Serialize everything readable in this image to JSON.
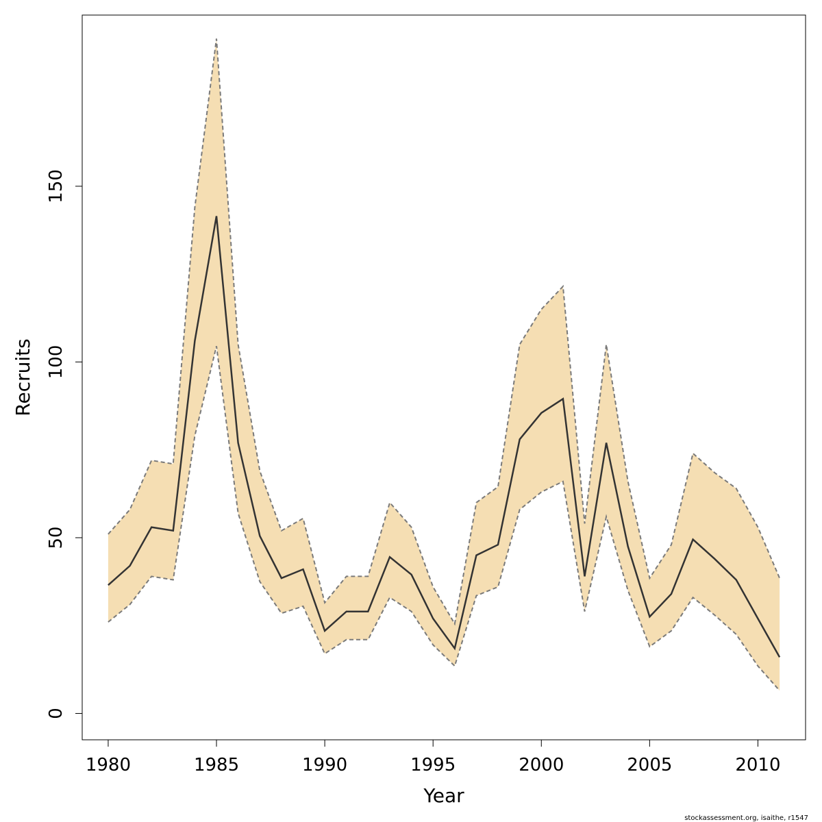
{
  "chart_data": {
    "type": "area",
    "title": "",
    "xlabel": "Year",
    "ylabel": "Recruits",
    "x": [
      1980,
      1981,
      1982,
      1983,
      1984,
      1985,
      1986,
      1987,
      1988,
      1989,
      1990,
      1991,
      1992,
      1993,
      1994,
      1995,
      1996,
      1997,
      1998,
      1999,
      2000,
      2001,
      2002,
      2003,
      2004,
      2005,
      2006,
      2007,
      2008,
      2009,
      2010,
      2011
    ],
    "series": [
      {
        "role": "estimate",
        "values": [
          36.5,
          42,
          53,
          52,
          106,
          141.5,
          77,
          50.5,
          38.5,
          41,
          23.5,
          29,
          29,
          44.5,
          39.5,
          27,
          18.5,
          45,
          48,
          78,
          85.5,
          89.5,
          39,
          77,
          47.5,
          27.5,
          34,
          49.5,
          44,
          38,
          27,
          16
        ]
      },
      {
        "role": "upper",
        "values": [
          51,
          58,
          72,
          71,
          144,
          192,
          105,
          69,
          52,
          55.5,
          31.5,
          39,
          39,
          60,
          53,
          36,
          25.5,
          60,
          64.5,
          105,
          115,
          121.5,
          54,
          105,
          66,
          38.5,
          48,
          74,
          68.5,
          64,
          53,
          38.5
        ]
      },
      {
        "role": "lower",
        "values": [
          26,
          31,
          39,
          38,
          79,
          104.5,
          57,
          37.5,
          28.5,
          30.5,
          17,
          21,
          21,
          33,
          29,
          19.5,
          13.5,
          33.5,
          36,
          58,
          63,
          66,
          29,
          56,
          35,
          19,
          23.5,
          33,
          28,
          22.5,
          13.5,
          6.5
        ]
      }
    ],
    "xlim": [
      1978.8,
      2012.2
    ],
    "ylim": [
      -7.5,
      198.7
    ],
    "x_ticks": [
      1980,
      1985,
      1990,
      1995,
      2000,
      2005,
      2010
    ],
    "y_ticks": [
      0,
      50,
      100,
      150
    ],
    "grid": false,
    "colors": {
      "band_fill": "#f5deb3",
      "line": "#333333",
      "band_edge": "#7a7a7a",
      "frame": "#000000"
    }
  },
  "footer": {
    "credit": "stockassessment.org, isaithe, r1547"
  }
}
